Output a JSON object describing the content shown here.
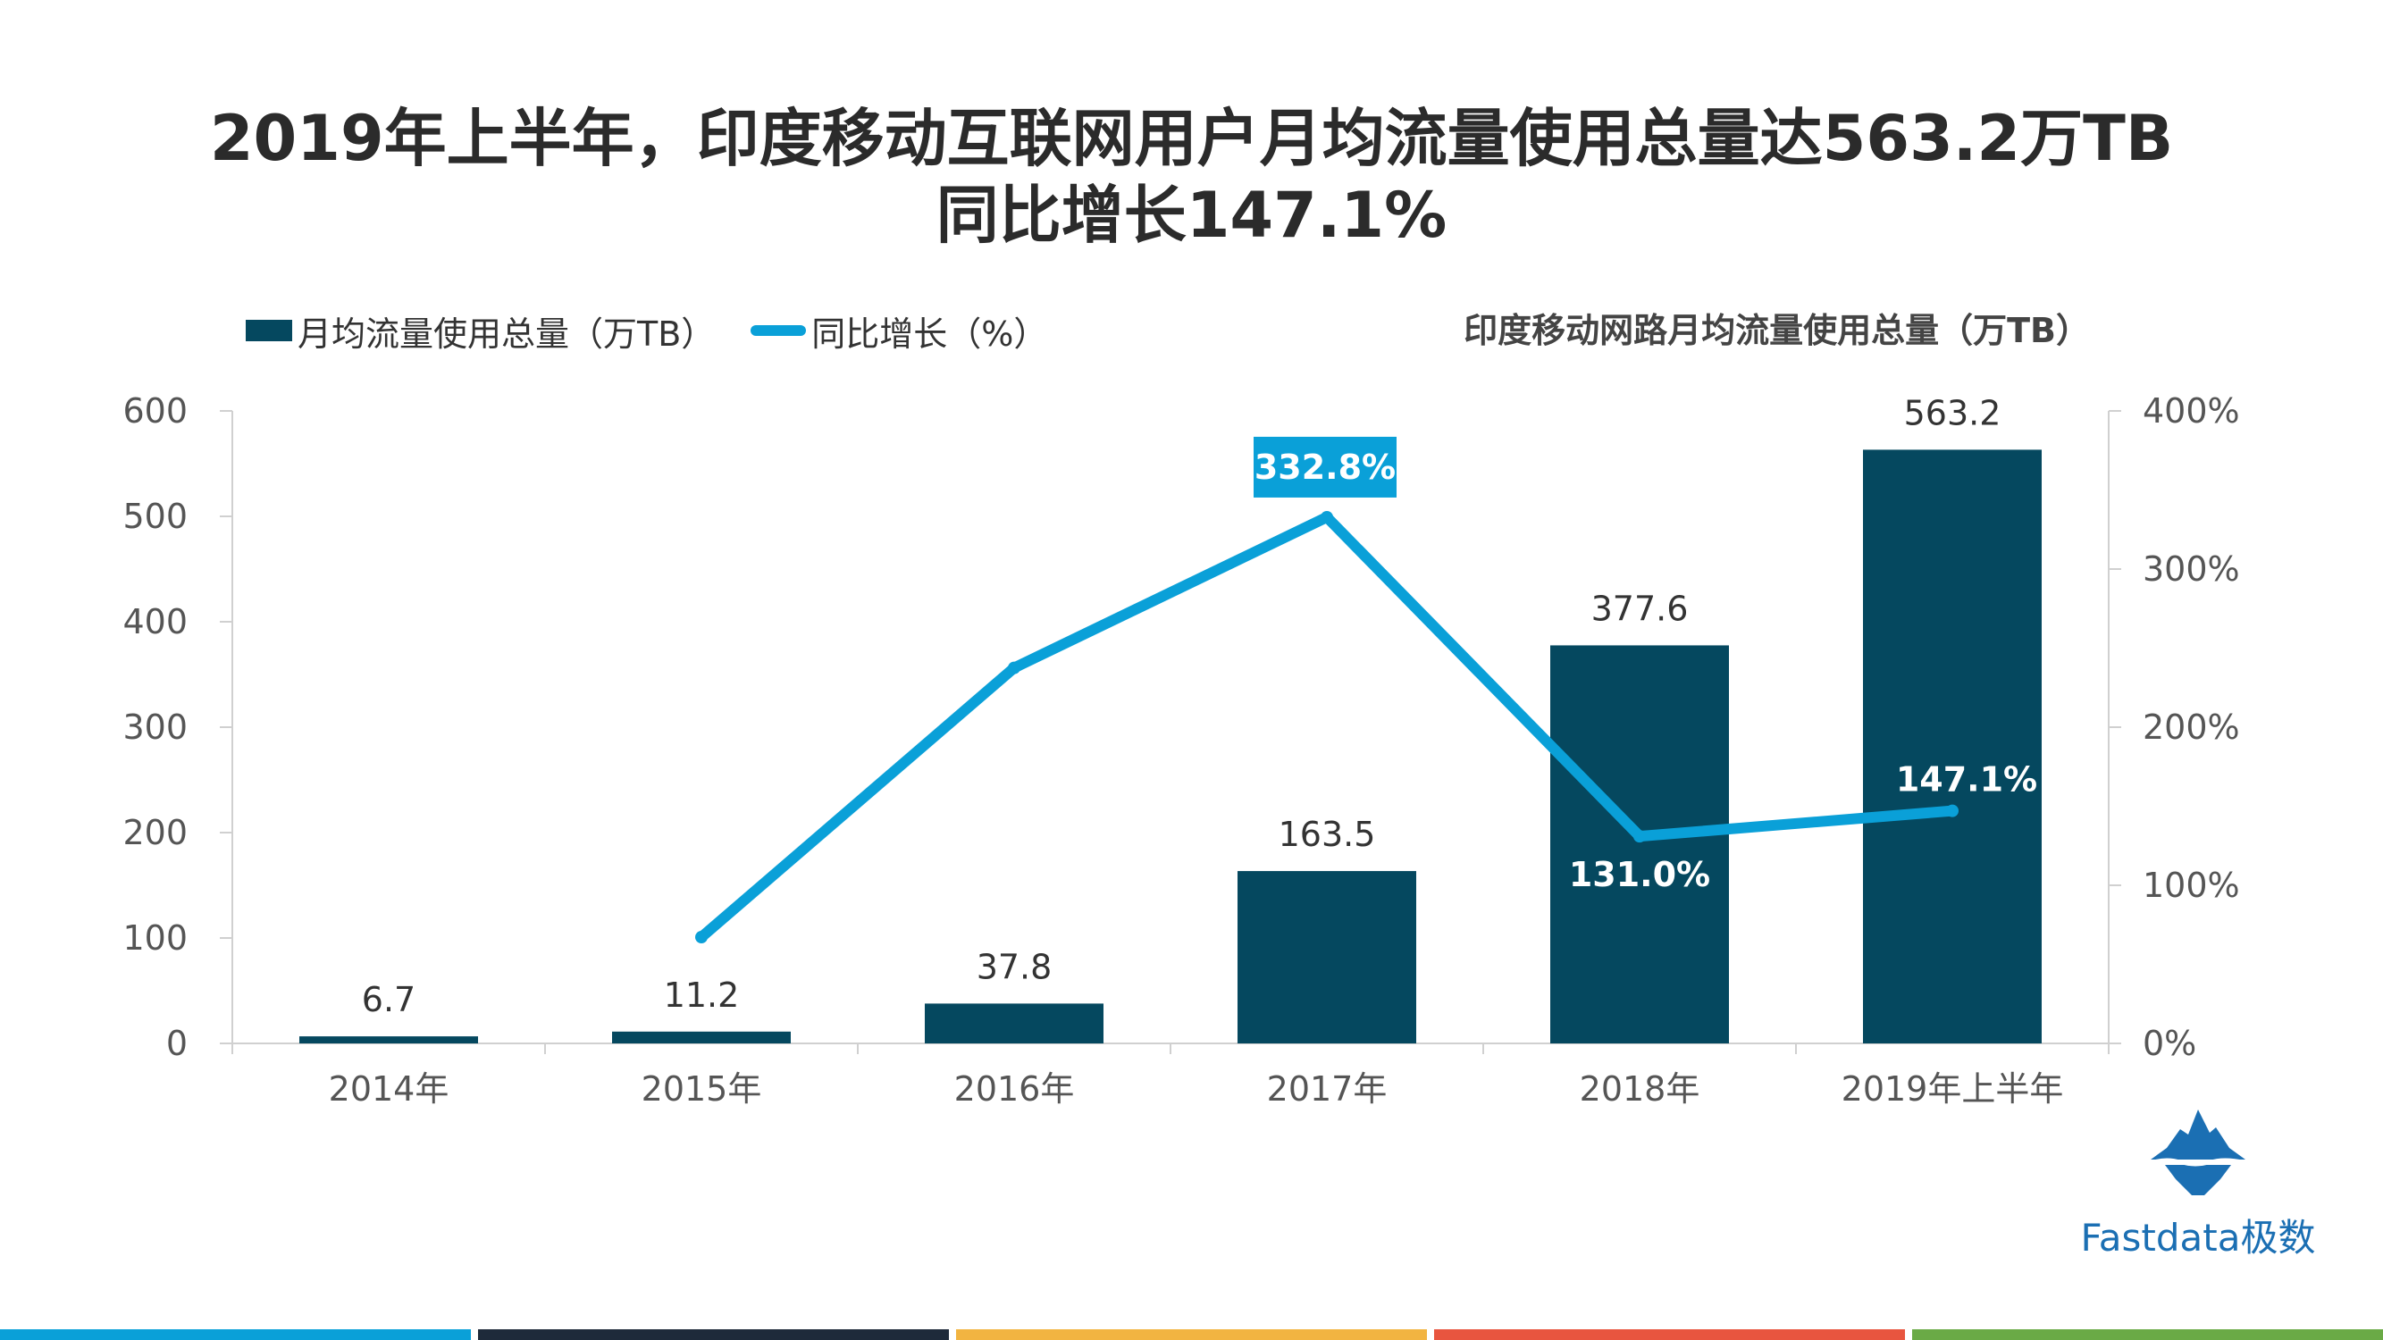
{
  "title": {
    "line1": "2019年上半年，印度移动互联网用户月均流量使用总量达563.2万TB",
    "line2": "同比增长147.1%"
  },
  "legend": {
    "bar_label": "月均流量使用总量（万TB）",
    "line_label": "同比增长（%）"
  },
  "right_label": "印度移动网路月均流量使用总量（万TB）",
  "chart_data": {
    "type": "bar",
    "categories": [
      "2014年",
      "2015年",
      "2016年",
      "2017年",
      "2018年",
      "2019年上半年"
    ],
    "series": [
      {
        "name": "月均流量使用总量（万TB）",
        "type": "bar",
        "axis": "left",
        "values": [
          6.7,
          11.2,
          37.8,
          163.5,
          377.6,
          563.2
        ],
        "labels": [
          "6.7",
          "11.2",
          "37.8",
          "163.5",
          "377.6",
          "563.2"
        ],
        "color": "#05485f"
      },
      {
        "name": "同比增长（%）",
        "type": "line",
        "axis": "right",
        "values": [
          null,
          67.2,
          237.5,
          332.8,
          131.0,
          147.1
        ],
        "labels": [
          null,
          null,
          null,
          "332.8%",
          "131.0%",
          "147.1%"
        ],
        "color": "#0aa0d8"
      }
    ],
    "y_left": {
      "min": 0,
      "max": 600,
      "ticks": [
        "0",
        "100",
        "200",
        "300",
        "400",
        "500",
        "600"
      ]
    },
    "y_right": {
      "min": 0,
      "max": 400,
      "ticks": [
        "0%",
        "100%",
        "200%",
        "300%",
        "400%"
      ]
    },
    "grid": false,
    "legend_position": "top-left"
  },
  "logo": {
    "text": "Fastdata极数",
    "icon": "iceberg-icon",
    "color": "#1b6fb3"
  },
  "stripes": [
    "#0aa0d8",
    "#1e2a3a",
    "#f2b441",
    "#e8553f",
    "#6aaa46"
  ]
}
